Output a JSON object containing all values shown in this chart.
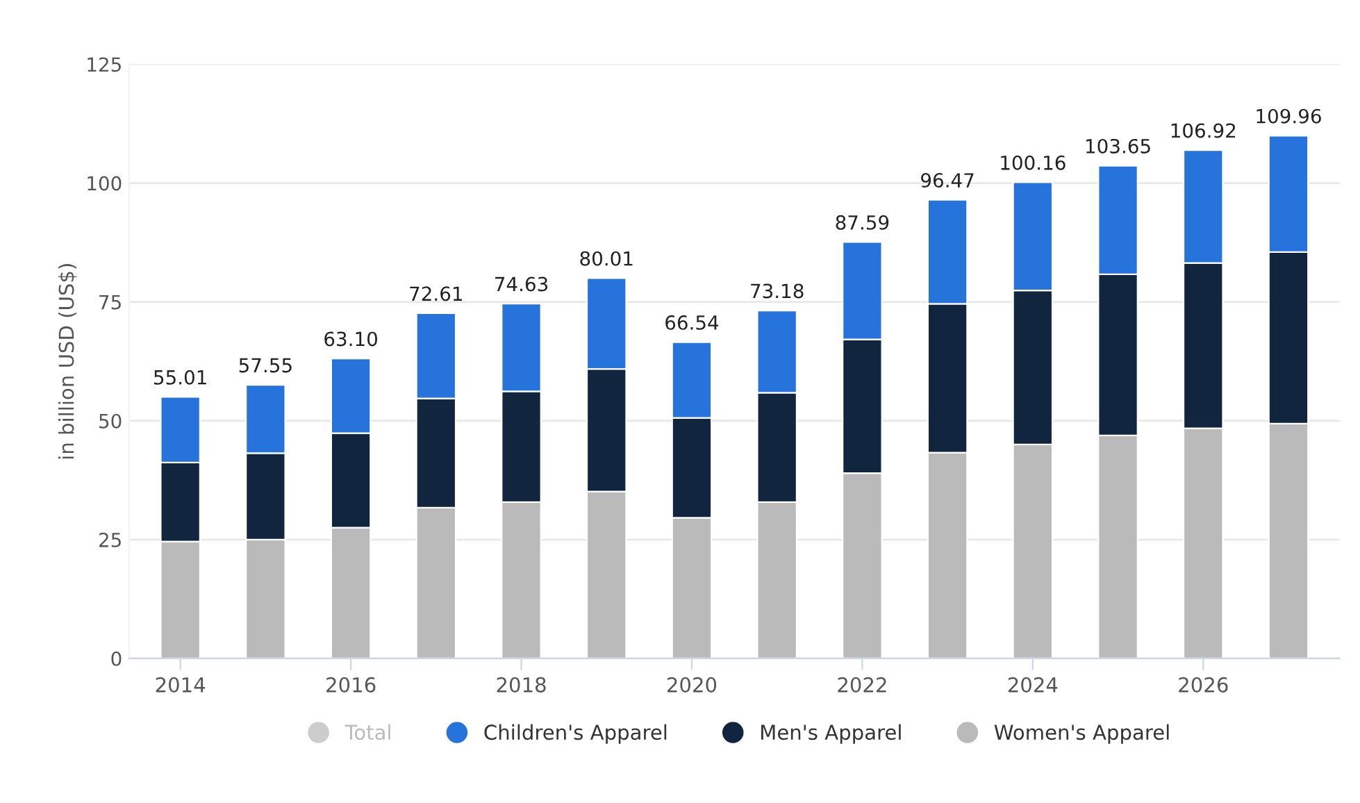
{
  "chart_data": {
    "type": "bar",
    "stacked": true,
    "ylabel": "in billion USD (US$)",
    "categories": [
      "2014",
      null,
      "2016",
      null,
      "2018",
      null,
      "2020",
      null,
      "2022",
      null,
      "2024",
      null,
      "2026",
      null
    ],
    "series": [
      {
        "name": "Women's Apparel",
        "color": "#bababa",
        "values": [
          24.6,
          25.0,
          27.5,
          31.7,
          32.9,
          35.1,
          29.6,
          32.9,
          39.0,
          43.3,
          45.0,
          46.9,
          48.4,
          49.4
        ]
      },
      {
        "name": "Men's Apparel",
        "color": "#11253f",
        "values": [
          16.6,
          18.2,
          19.9,
          23.0,
          23.3,
          25.8,
          21.0,
          23.0,
          28.1,
          31.3,
          32.4,
          33.9,
          34.8,
          36.1
        ]
      },
      {
        "name": "Children's Apparel",
        "color": "#2673dc",
        "values": [
          13.81,
          14.35,
          15.7,
          17.91,
          18.43,
          19.11,
          15.94,
          17.28,
          20.49,
          21.87,
          22.76,
          22.85,
          23.72,
          24.46
        ]
      },
      {
        "name": "Total",
        "color": "#cccccc",
        "values": [
          null,
          null,
          null,
          null,
          null,
          null,
          null,
          null,
          null,
          null,
          null,
          null,
          null,
          null
        ]
      }
    ],
    "totals": [
      "55.01",
      "57.55",
      "63.10",
      "72.61",
      "74.63",
      "80.01",
      "66.54",
      "73.18",
      "87.59",
      "96.47",
      "100.16",
      "103.65",
      "106.92",
      "109.96"
    ],
    "ylim": [
      0,
      125
    ],
    "yticks": [
      0,
      25,
      50,
      75,
      100,
      125
    ],
    "grid": "y",
    "legend": "bottom",
    "marker": "circle"
  }
}
